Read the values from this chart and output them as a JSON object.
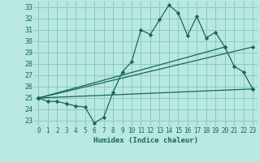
{
  "xlabel": "Humidex (Indice chaleur)",
  "background_color": "#b8e8e0",
  "grid_color": "#88ccbb",
  "line_color": "#1a6655",
  "xlim": [
    -0.5,
    23.5
  ],
  "ylim": [
    22.5,
    33.5
  ],
  "yticks": [
    23,
    24,
    25,
    26,
    27,
    28,
    29,
    30,
    31,
    32,
    33
  ],
  "xticks": [
    0,
    1,
    2,
    3,
    4,
    5,
    6,
    7,
    8,
    9,
    10,
    11,
    12,
    13,
    14,
    15,
    16,
    17,
    18,
    19,
    20,
    21,
    22,
    23
  ],
  "lines": [
    {
      "x": [
        0,
        1,
        2,
        3,
        4,
        5,
        6,
        7,
        8,
        9,
        10,
        11,
        12,
        13,
        14,
        15,
        16,
        17,
        18,
        19,
        20,
        21,
        22,
        23
      ],
      "y": [
        25.0,
        24.7,
        24.7,
        24.5,
        24.3,
        24.2,
        22.8,
        23.3,
        25.5,
        27.3,
        28.2,
        31.0,
        30.6,
        31.9,
        33.2,
        32.5,
        30.5,
        32.2,
        30.3,
        30.8,
        29.5,
        27.8,
        27.3,
        25.8
      ]
    },
    {
      "x": [
        0,
        20
      ],
      "y": [
        25.0,
        29.5
      ]
    },
    {
      "x": [
        0,
        23
      ],
      "y": [
        25.0,
        29.5
      ]
    },
    {
      "x": [
        0,
        23
      ],
      "y": [
        25.0,
        25.8
      ]
    }
  ]
}
